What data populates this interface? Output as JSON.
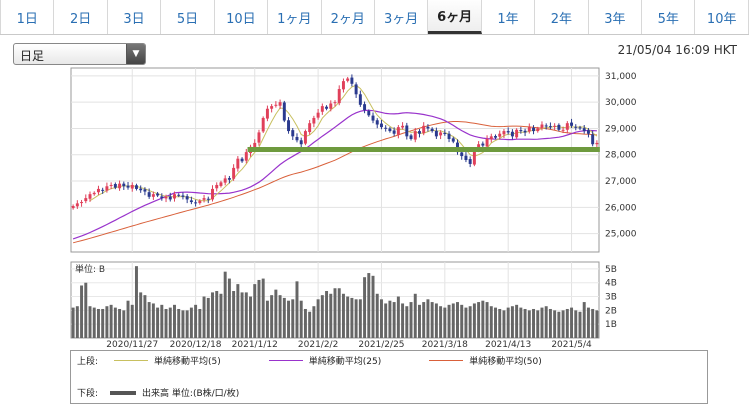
{
  "tabs": [
    {
      "label": "1日",
      "active": false
    },
    {
      "label": "2日",
      "active": false
    },
    {
      "label": "3日",
      "active": false
    },
    {
      "label": "5日",
      "active": false
    },
    {
      "label": "10日",
      "active": false
    },
    {
      "label": "1ヶ月",
      "active": false
    },
    {
      "label": "2ヶ月",
      "active": false
    },
    {
      "label": "3ヶ月",
      "active": false
    },
    {
      "label": "6ヶ月",
      "active": true
    },
    {
      "label": "1年",
      "active": false
    },
    {
      "label": "2年",
      "active": false
    },
    {
      "label": "3年",
      "active": false
    },
    {
      "label": "5年",
      "active": false
    },
    {
      "label": "10年",
      "active": false
    }
  ],
  "period_select": {
    "value": "日足"
  },
  "timestamp": "21/05/04 16:09 HKT",
  "legend": {
    "upper_label": "上段:",
    "lower_label": "下段:",
    "ma5": "単純移動平均(5)",
    "ma25": "単純移動平均(25)",
    "ma50": "単純移動平均(50)",
    "volume": "出来高 単位:(B株/口/枚)"
  },
  "colors": {
    "up": "#e0405a",
    "down": "#2a3a8e",
    "ma5": "#c8c060",
    "ma25": "#9933cc",
    "ma50": "#d9603a",
    "support": "#6e9a3e",
    "volume": "#666666",
    "tab_text": "#2a6fb3"
  },
  "chart_data": [
    {
      "type": "candlestick",
      "x_labels": [
        "2020/11/27",
        "2020/12/18",
        "2021/1/12",
        "2021/2/2",
        "2021/2/25",
        "2021/3/18",
        "2021/4/13",
        "2021/5/4"
      ],
      "yticks": [
        "31,000",
        "30,000",
        "29,000",
        "28,000",
        "27,000",
        "26,000",
        "25,000"
      ],
      "ylim": [
        24300,
        31300
      ],
      "support_level": 28200,
      "support_range": [
        42,
        124
      ],
      "closes": [
        26050,
        26150,
        26200,
        26350,
        26500,
        26550,
        26700,
        26650,
        26800,
        26850,
        26750,
        26900,
        26800,
        26750,
        26850,
        26700,
        26650,
        26600,
        26400,
        26500,
        26450,
        26350,
        26400,
        26300,
        26500,
        26450,
        26400,
        26300,
        26200,
        26150,
        26250,
        26350,
        26300,
        26700,
        26850,
        26950,
        27100,
        27050,
        27500,
        27850,
        27750,
        28100,
        28300,
        28450,
        28850,
        29400,
        29750,
        29850,
        29900,
        30000,
        29300,
        28900,
        28700,
        28550,
        28400,
        28900,
        29200,
        29400,
        29600,
        29850,
        29750,
        29950,
        30000,
        30500,
        30800,
        30900,
        30700,
        30300,
        29900,
        29700,
        29500,
        29300,
        29150,
        29050,
        29000,
        28900,
        28800,
        29050,
        29100,
        28700,
        28600,
        28900,
        28800,
        29100,
        29000,
        28900,
        28700,
        28850,
        28800,
        28600,
        28500,
        28100,
        27950,
        27800,
        27650,
        28200,
        28400,
        28350,
        28600,
        28700,
        28650,
        28800,
        28900,
        28850,
        28700,
        28950,
        28900,
        28850,
        29050,
        28900,
        29000,
        29150,
        29100,
        29050,
        29100,
        28950,
        28950,
        29200,
        29100,
        29050,
        29000,
        28900,
        28800,
        28400,
        28450
      ],
      "ma5_start": 4,
      "ma25_start": 0,
      "ma50_start": 0
    },
    {
      "type": "bar",
      "title": "単位: B",
      "yticks": [
        "5B",
        "4B",
        "3B",
        "2B",
        "1B"
      ],
      "ylim": [
        0,
        5.5
      ],
      "volumes": [
        2.2,
        2.3,
        3.8,
        4.0,
        2.3,
        2.2,
        2.1,
        2.1,
        2.3,
        2.4,
        2.2,
        2.1,
        2.0,
        2.7,
        2.4,
        5.2,
        3.3,
        3.1,
        2.6,
        2.5,
        2.2,
        2.4,
        2.1,
        2.2,
        2.4,
        2.1,
        2.0,
        2.0,
        2.2,
        2.4,
        2.1,
        3.0,
        2.9,
        3.3,
        3.4,
        3.2,
        4.8,
        4.3,
        3.4,
        3.9,
        3.3,
        3.3,
        3.0,
        3.9,
        4.2,
        4.3,
        2.7,
        3.1,
        3.5,
        3.1,
        2.9,
        2.7,
        2.8,
        4.1,
        2.7,
        2.1,
        1.9,
        2.3,
        2.8,
        3.1,
        3.4,
        3.2,
        3.6,
        3.6,
        3.2,
        3.0,
        2.9,
        2.8,
        2.8,
        4.4,
        4.7,
        4.5,
        3.2,
        2.8,
        2.5,
        2.7,
        2.6,
        3.0,
        2.5,
        2.3,
        2.6,
        3.2,
        2.4,
        2.6,
        2.8,
        2.6,
        2.5,
        2.3,
        2.2,
        2.4,
        2.5,
        2.6,
        2.4,
        2.2,
        2.3,
        2.5,
        2.6,
        2.7,
        2.6,
        2.3,
        2.2,
        2.1,
        2.0,
        2.2,
        2.3,
        2.4,
        2.2,
        2.1,
        2.0,
        2.1,
        2.0,
        2.2,
        2.3,
        2.1,
        2.0,
        1.9,
        2.0,
        2.1,
        2.2,
        2.0,
        1.9,
        2.6,
        2.2,
        2.1,
        2.0
      ]
    }
  ]
}
